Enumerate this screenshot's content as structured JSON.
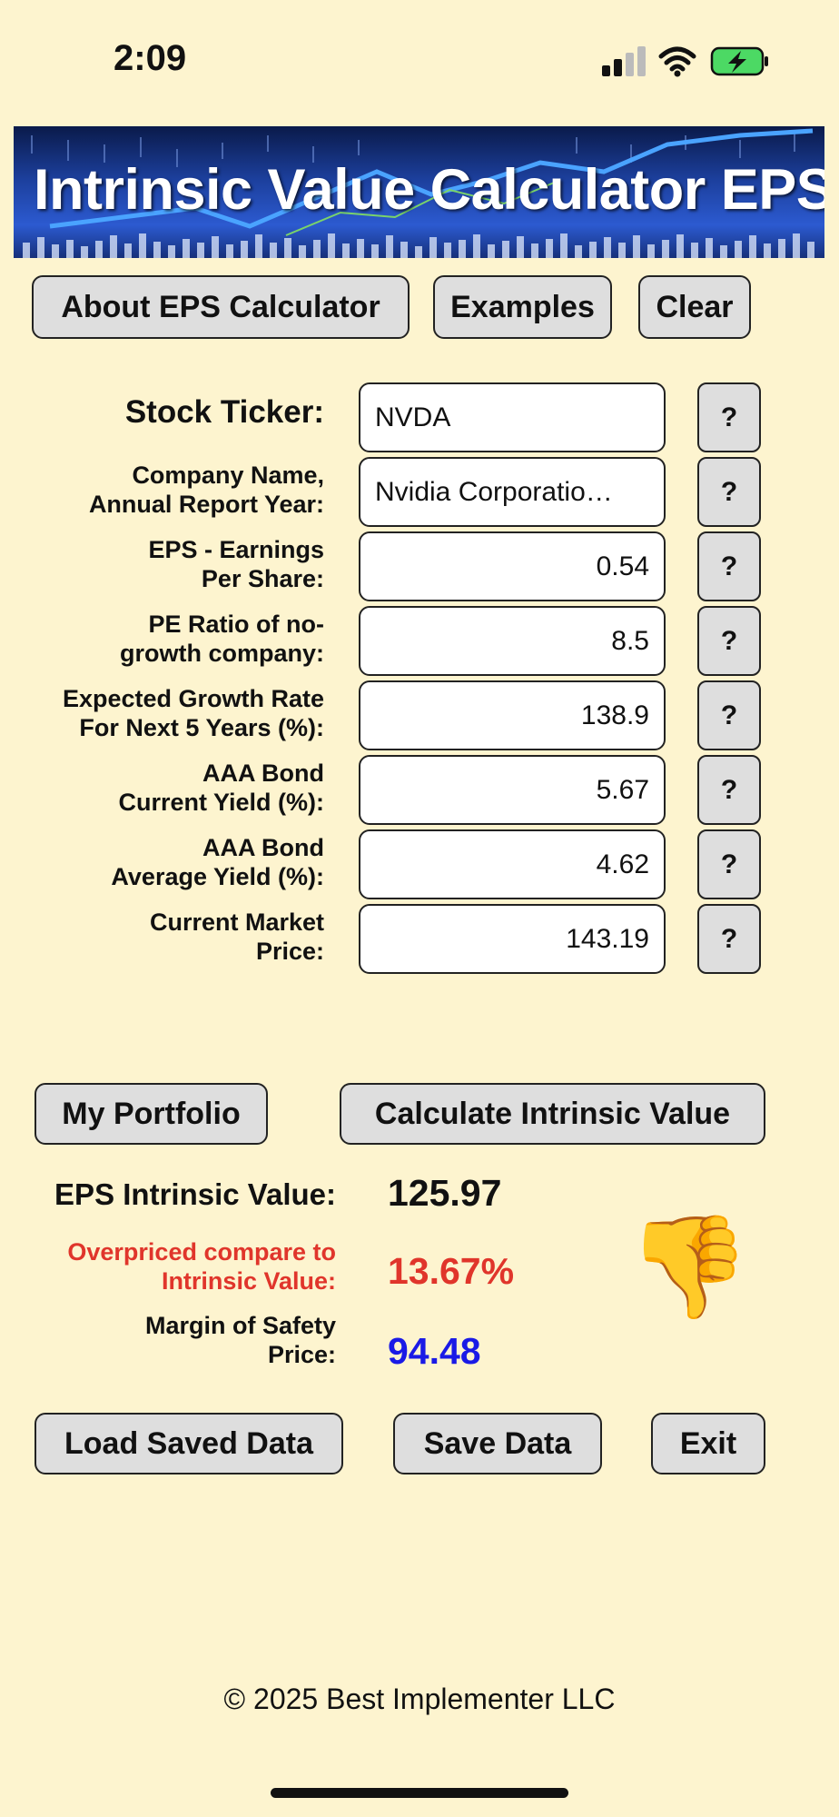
{
  "status": {
    "time": "2:09"
  },
  "banner": {
    "title": "Intrinsic Value Calculator EPS"
  },
  "top_buttons": {
    "about": "About EPS Calculator",
    "examples": "Examples",
    "clear": "Clear"
  },
  "form": {
    "help_label": "?",
    "fields": [
      {
        "label": "Stock Ticker:",
        "value": "NVDA"
      },
      {
        "label_l1": "Company Name,",
        "label_l2": "Annual Report Year:",
        "value": "Nvidia Corporatio…"
      },
      {
        "label_l1": "EPS - Earnings",
        "label_l2": "Per Share:",
        "value": "0.54"
      },
      {
        "label_l1": "PE Ratio of no-",
        "label_l2": "growth company:",
        "value": "8.5"
      },
      {
        "label_l1": "Expected Growth Rate",
        "label_l2": "For Next 5 Years (%):",
        "value": "138.9"
      },
      {
        "label_l1": "AAA Bond",
        "label_l2": "Current Yield (%):",
        "value": "5.67"
      },
      {
        "label_l1": "AAA Bond",
        "label_l2": "Average Yield (%):",
        "value": "4.62"
      },
      {
        "label_l1": "Current Market",
        "label_l2": "Price:",
        "value": "143.19"
      }
    ]
  },
  "mid_buttons": {
    "portfolio": "My Portfolio",
    "calculate": "Calculate Intrinsic Value"
  },
  "results": {
    "intrinsic_label": "EPS Intrinsic Value:",
    "intrinsic_value": "125.97",
    "over_label_l1": "Overpriced compare to",
    "over_label_l2": "Intrinsic Value:",
    "over_value": "13.67%",
    "margin_label_l1": "Margin of Safety",
    "margin_label_l2": "Price:",
    "margin_value": "94.48",
    "verdict_icon": "👎",
    "colors": {
      "overpriced": "#e0352b",
      "margin": "#1a1ae6"
    }
  },
  "bottom_buttons": {
    "load": "Load Saved Data",
    "save": "Save Data",
    "exit": "Exit"
  },
  "footer": {
    "copyright": "© 2025 Best Implementer LLC"
  }
}
